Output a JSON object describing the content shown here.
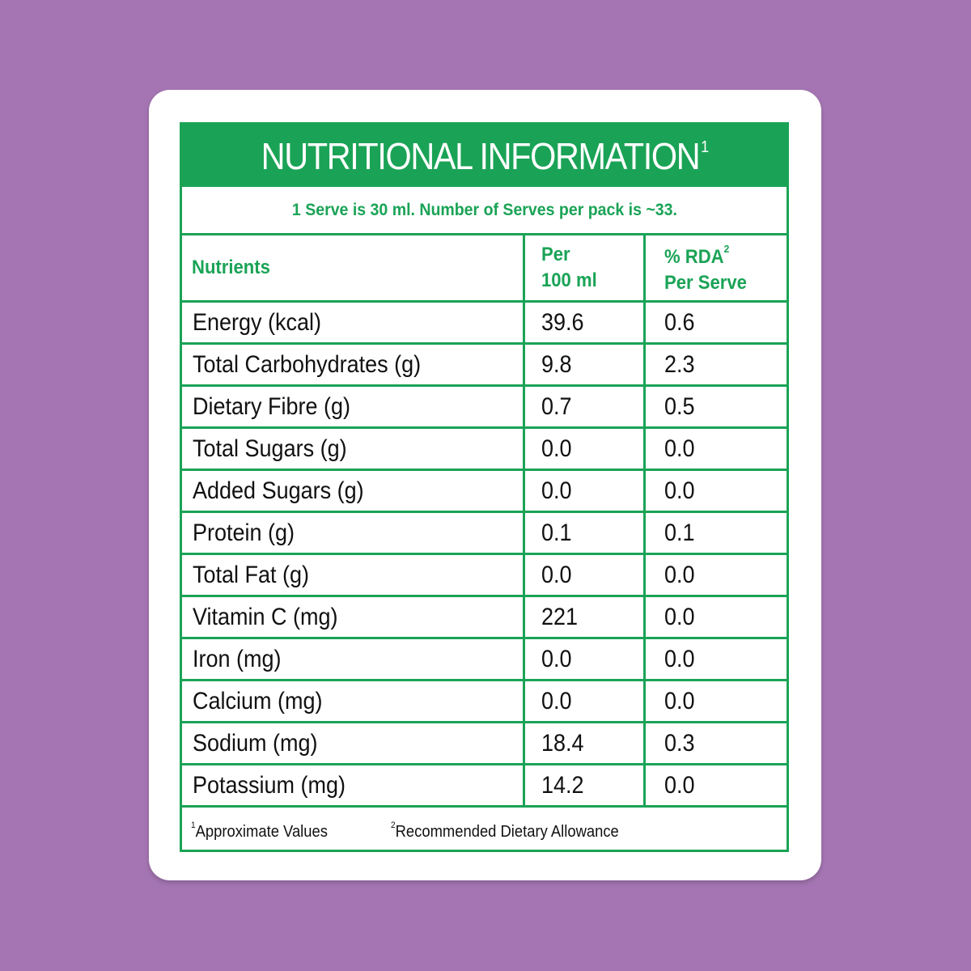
{
  "colors": {
    "background": "#a475b2",
    "card": "#ffffff",
    "accent_green": "#1aa356",
    "text": "#111111"
  },
  "label": {
    "title": "NUTRITIONAL INFORMATION",
    "title_sup": "1",
    "serve_info": "1 Serve is 30 ml. Number of Serves per pack is ~33.",
    "headers": {
      "nutrients": "Nutrients",
      "per_100_line1": "Per",
      "per_100_line2": "100 ml",
      "rda_line1": "% RDA",
      "rda_sup": "2",
      "rda_line2": "Per Serve"
    },
    "rows": [
      {
        "nutrient": "Energy (kcal)",
        "per100": "39.6",
        "rda": "0.6"
      },
      {
        "nutrient": "Total Carbohydrates (g)",
        "per100": "9.8",
        "rda": "2.3"
      },
      {
        "nutrient": "Dietary Fibre (g)",
        "per100": "0.7",
        "rda": "0.5"
      },
      {
        "nutrient": "Total Sugars (g)",
        "per100": "0.0",
        "rda": "0.0"
      },
      {
        "nutrient": "Added Sugars (g)",
        "per100": "0.0",
        "rda": "0.0"
      },
      {
        "nutrient": "Protein (g)",
        "per100": "0.1",
        "rda": "0.1"
      },
      {
        "nutrient": "Total Fat (g)",
        "per100": "0.0",
        "rda": "0.0"
      },
      {
        "nutrient": "Vitamin C (mg)",
        "per100": "221",
        "rda": "0.0"
      },
      {
        "nutrient": "Iron (mg)",
        "per100": "0.0",
        "rda": "0.0"
      },
      {
        "nutrient": "Calcium (mg)",
        "per100": "0.0",
        "rda": "0.0"
      },
      {
        "nutrient": "Sodium (mg)",
        "per100": "18.4",
        "rda": "0.3"
      },
      {
        "nutrient": "Potassium (mg)",
        "per100": "14.2",
        "rda": "0.0"
      }
    ],
    "footnotes": {
      "note1_sup": "1",
      "note1": "Approximate Values",
      "note2_sup": "2",
      "note2": "Recommended Dietary Allowance"
    }
  }
}
